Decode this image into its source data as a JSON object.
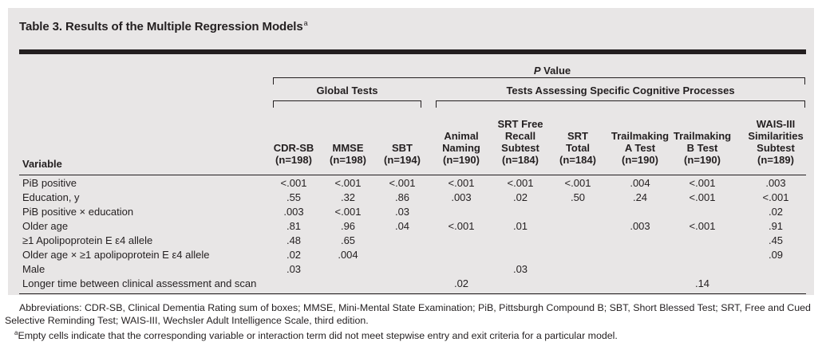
{
  "table": {
    "title": "Table 3. Results of the Multiple Regression Models",
    "title_marker": "a",
    "pvalue_italic": "P",
    "pvalue_rest": " Value",
    "group_global": "Global Tests",
    "group_specific": "Tests Assessing Specific Cognitive Processes",
    "variable_header": "Variable",
    "columns": [
      {
        "lines": [
          "CDR-SB",
          "(n=198)"
        ]
      },
      {
        "lines": [
          "MMSE",
          "(n=198)"
        ]
      },
      {
        "lines": [
          "SBT",
          "(n=194)"
        ]
      },
      {
        "lines": [
          "Animal",
          "Naming",
          "(n=190)"
        ]
      },
      {
        "lines": [
          "SRT Free",
          "Recall",
          "Subtest",
          "(n=184)"
        ]
      },
      {
        "lines": [
          "SRT",
          "Total",
          "(n=184)"
        ]
      },
      {
        "lines": [
          "Trailmaking",
          "A Test",
          "(n=190)"
        ]
      },
      {
        "lines": [
          "Trailmaking",
          "B Test",
          "(n=190)"
        ]
      },
      {
        "lines": [
          "WAIS-III",
          "Similarities",
          "Subtest",
          "(n=189)"
        ]
      }
    ],
    "rows": [
      {
        "label": "PiB positive",
        "values": [
          "<.001",
          "<.001",
          "<.001",
          "<.001",
          "<.001",
          "<.001",
          ".004",
          "<.001",
          ".003"
        ]
      },
      {
        "label": "Education, y",
        "values": [
          ".55",
          ".32",
          ".86",
          ".003",
          ".02",
          ".50",
          ".24",
          "<.001",
          "<.001"
        ]
      },
      {
        "label": "PiB positive × education",
        "values": [
          ".003",
          "<.001",
          ".03",
          "",
          "",
          "",
          "",
          "",
          ".02"
        ]
      },
      {
        "label": "Older age",
        "values": [
          ".81",
          ".96",
          ".04",
          "<.001",
          ".01",
          "",
          ".003",
          "<.001",
          ".91"
        ]
      },
      {
        "label": "≥1 Apolipoprotein E ε4 allele",
        "values": [
          ".48",
          ".65",
          "",
          "",
          "",
          "",
          "",
          "",
          ".45"
        ]
      },
      {
        "label": "Older age × ≥1 apolipoprotein E ε4 allele",
        "values": [
          ".02",
          ".004",
          "",
          "",
          "",
          "",
          "",
          "",
          ".09"
        ]
      },
      {
        "label": "Male",
        "values": [
          ".03",
          "",
          "",
          "",
          ".03",
          "",
          "",
          "",
          ""
        ]
      },
      {
        "label": "Longer time between clinical assessment and scan",
        "values": [
          "",
          "",
          "",
          ".02",
          "",
          "",
          "",
          ".14",
          ""
        ]
      }
    ]
  },
  "footnotes": {
    "abbreviations": "Abbreviations: CDR-SB, Clinical Dementia Rating sum of boxes; MMSE, Mini-Mental State Examination; PiB, Pittsburgh Compound B; SBT, Short Blessed Test; SRT, Free and Cued Selective Reminding Test; WAIS-III, Wechsler Adult Intelligence Scale, third edition.",
    "marker": "a",
    "note": "Empty cells indicate that the corresponding variable or interaction term did not meet stepwise entry and exit criteria for a particular model."
  }
}
